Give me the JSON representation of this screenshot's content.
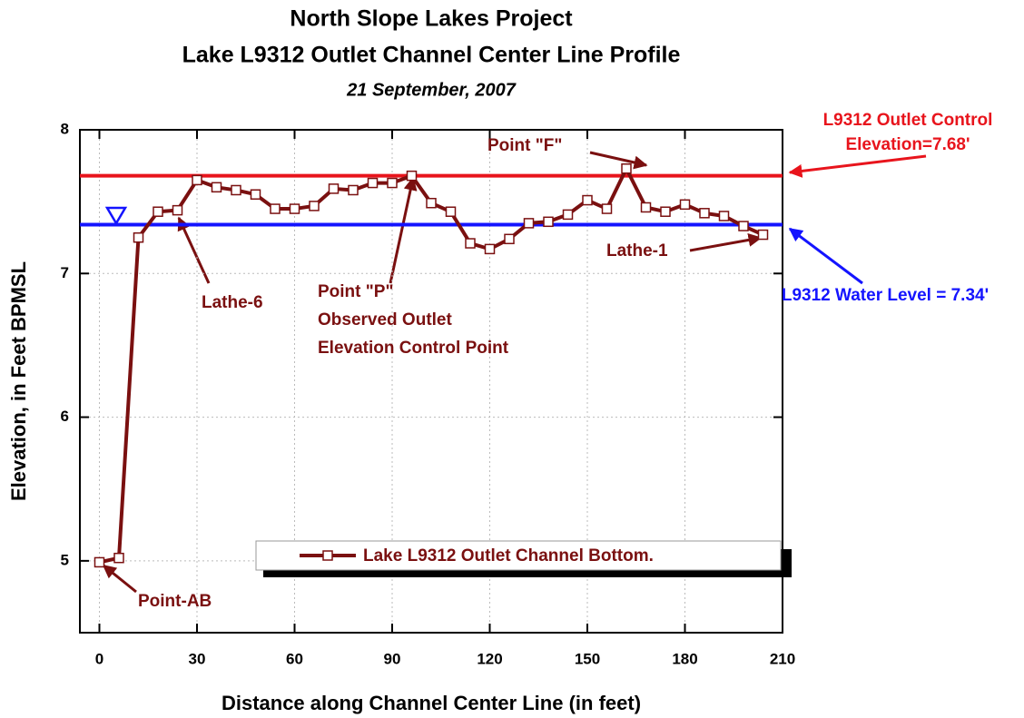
{
  "chart_data": {
    "type": "line",
    "title": "North Slope Lakes Project",
    "subtitle": "Lake L9312 Outlet Channel Center Line Profile",
    "caption": "21 September, 2007",
    "x_label": "Distance along Channel Center Line (in feet)",
    "y_label": "Elevation, in Feet BPMSL",
    "xlim": [
      -6,
      210
    ],
    "ylim": [
      4.5,
      8
    ],
    "xticks": [
      0,
      30,
      60,
      90,
      120,
      150,
      180,
      210
    ],
    "yticks": [
      5,
      6,
      7,
      8
    ],
    "grid": true,
    "series": [
      {
        "name": "Lake L9312 Outlet Channel Bottom.",
        "color": "#7a1010",
        "x": [
          0,
          6,
          12,
          18,
          24,
          30,
          36,
          42,
          48,
          54,
          60,
          66,
          72,
          78,
          84,
          90,
          96,
          102,
          108,
          114,
          120,
          126,
          132,
          138,
          144,
          150,
          156,
          162,
          168,
          174,
          180,
          186,
          192,
          198,
          204
        ],
        "values": [
          4.99,
          5.02,
          7.25,
          7.43,
          7.44,
          7.65,
          7.6,
          7.58,
          7.55,
          7.45,
          7.45,
          7.47,
          7.59,
          7.58,
          7.63,
          7.63,
          7.68,
          7.49,
          7.43,
          7.21,
          7.17,
          7.24,
          7.35,
          7.36,
          7.41,
          7.51,
          7.45,
          7.73,
          7.46,
          7.43,
          7.48,
          7.42,
          7.4,
          7.33,
          7.27
        ]
      }
    ],
    "hlines": [
      {
        "value": 7.68,
        "color": "#e8141c",
        "label": [
          "L9312 Outlet Control",
          "Elevation=7.68'"
        ]
      },
      {
        "value": 7.34,
        "color": "#1414ff",
        "label": [
          "L9312 Water Level = 7.34'"
        ]
      }
    ],
    "annotations": [
      {
        "text": [
          "Point \"F\""
        ]
      },
      {
        "text": [
          "Lathe-1"
        ]
      },
      {
        "text": [
          "Lathe-6"
        ]
      },
      {
        "text": [
          "Point \"P\"",
          "Observed Outlet",
          "Elevation Control Point"
        ]
      },
      {
        "text": [
          "Point-AB"
        ]
      }
    ]
  }
}
